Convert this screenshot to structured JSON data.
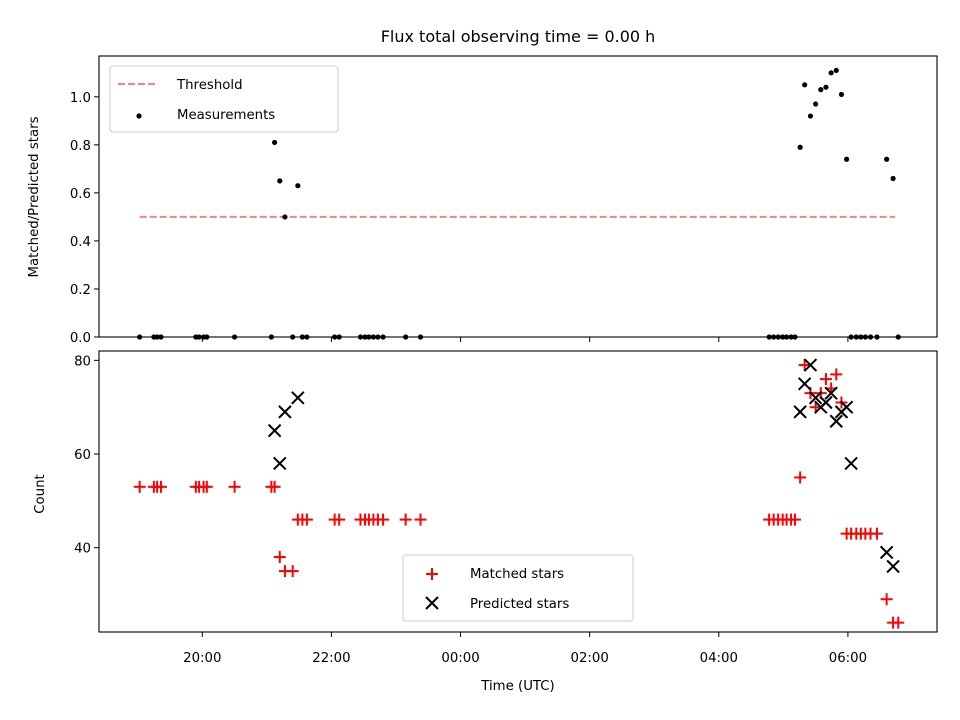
{
  "chart_data": [
    {
      "type": "scatter",
      "title": "Flux total observing time = 0.00 h",
      "xlabel": "",
      "ylabel": "Matched/Predicted stars",
      "ylim": [
        0,
        1.17
      ],
      "yticks": [
        "0.0",
        "0.2",
        "0.4",
        "0.6",
        "0.8",
        "1.0"
      ],
      "ytick_values": [
        0,
        0.2,
        0.4,
        0.6,
        0.8,
        1.0
      ],
      "legend": {
        "placement": "upper-left",
        "entries": [
          "Threshold",
          "Measurements"
        ]
      },
      "threshold": {
        "name": "Threshold",
        "value": 0.5,
        "x_start": -4.97,
        "x_end": 6.73,
        "color": "#ff7f7f"
      },
      "series": [
        {
          "name": "Measurements",
          "marker": "dot",
          "color": "#000000",
          "x": [
            -4.97,
            -4.75,
            -4.7,
            -4.64,
            -4.1,
            -4.05,
            -3.98,
            -3.93,
            -3.5,
            -2.93,
            -2.88,
            -2.8,
            -2.72,
            -2.6,
            -2.52,
            -2.45,
            -2.38,
            -1.95,
            -1.88,
            -1.55,
            -1.48,
            -1.42,
            -1.35,
            -1.28,
            -1.2,
            -0.85,
            -0.62,
            4.78,
            4.85,
            4.92,
            4.99,
            5.05,
            5.12,
            5.18,
            5.26,
            5.33,
            5.42,
            5.5,
            5.58,
            5.66,
            5.74,
            5.82,
            5.9,
            5.98,
            6.05,
            6.13,
            6.2,
            6.27,
            6.35,
            6.45,
            6.6,
            6.7,
            6.78
          ],
          "y": [
            0,
            0,
            0,
            0,
            0,
            0,
            0,
            0,
            0,
            0,
            0.81,
            0.65,
            0.5,
            0,
            0.63,
            0,
            0,
            0,
            0,
            0,
            0,
            0,
            0,
            0,
            0,
            0,
            0,
            0,
            0,
            0,
            0,
            0,
            0,
            0,
            0.79,
            1.05,
            0.92,
            0.97,
            1.03,
            1.04,
            1.1,
            1.11,
            1.01,
            0.74,
            0,
            0,
            0,
            0,
            0,
            0,
            0.74,
            0.66,
            0
          ]
        }
      ]
    },
    {
      "type": "scatter",
      "title": "",
      "xlabel": "Time (UTC)",
      "ylabel": "Count",
      "ylim": [
        22,
        82
      ],
      "yticks": [
        "40",
        "60",
        "80"
      ],
      "ytick_values": [
        40,
        60,
        80
      ],
      "xlim": [
        -5.6,
        7.38
      ],
      "xticks": [
        "20:00",
        "22:00",
        "00:00",
        "02:00",
        "04:00",
        "06:00"
      ],
      "xtick_values": [
        -4,
        -2,
        0,
        2,
        4,
        6
      ],
      "legend": {
        "placement": "lower-center",
        "entries": [
          "Matched stars",
          "Predicted stars"
        ]
      },
      "series": [
        {
          "name": "Matched stars",
          "marker": "plus",
          "color": "#ff0000",
          "x": [
            -4.97,
            -4.75,
            -4.7,
            -4.64,
            -4.1,
            -4.05,
            -3.98,
            -3.93,
            -3.5,
            -2.93,
            -2.88,
            -2.8,
            -2.72,
            -2.6,
            -2.52,
            -2.45,
            -2.38,
            -1.95,
            -1.88,
            -1.55,
            -1.48,
            -1.42,
            -1.35,
            -1.28,
            -1.2,
            -0.85,
            -0.62,
            4.78,
            4.85,
            4.92,
            4.99,
            5.05,
            5.12,
            5.18,
            5.26,
            5.33,
            5.42,
            5.5,
            5.58,
            5.66,
            5.74,
            5.82,
            5.9,
            5.98,
            6.05,
            6.13,
            6.2,
            6.27,
            6.35,
            6.45,
            6.6,
            6.7,
            6.78
          ],
          "y": [
            53,
            53,
            53,
            53,
            53,
            53,
            53,
            53,
            53,
            53,
            53,
            38,
            35,
            35,
            46,
            46,
            46,
            46,
            46,
            46,
            46,
            46,
            46,
            46,
            46,
            46,
            46,
            46,
            46,
            46,
            46,
            46,
            46,
            46,
            55,
            79,
            73,
            70,
            73,
            76,
            74,
            77,
            71,
            43,
            43,
            43,
            43,
            43,
            43,
            43,
            29,
            24,
            24
          ]
        },
        {
          "name": "Predicted stars",
          "marker": "x",
          "color": "#000000",
          "x": [
            -2.88,
            -2.8,
            -2.72,
            -2.52,
            5.26,
            5.33,
            5.42,
            5.5,
            5.58,
            5.66,
            5.74,
            5.82,
            5.9,
            5.98,
            6.05,
            6.6,
            6.7
          ],
          "y": [
            65,
            58,
            69,
            72,
            69,
            75,
            79,
            72,
            70,
            71,
            73,
            67,
            69,
            70,
            58,
            39,
            36
          ]
        }
      ]
    }
  ]
}
